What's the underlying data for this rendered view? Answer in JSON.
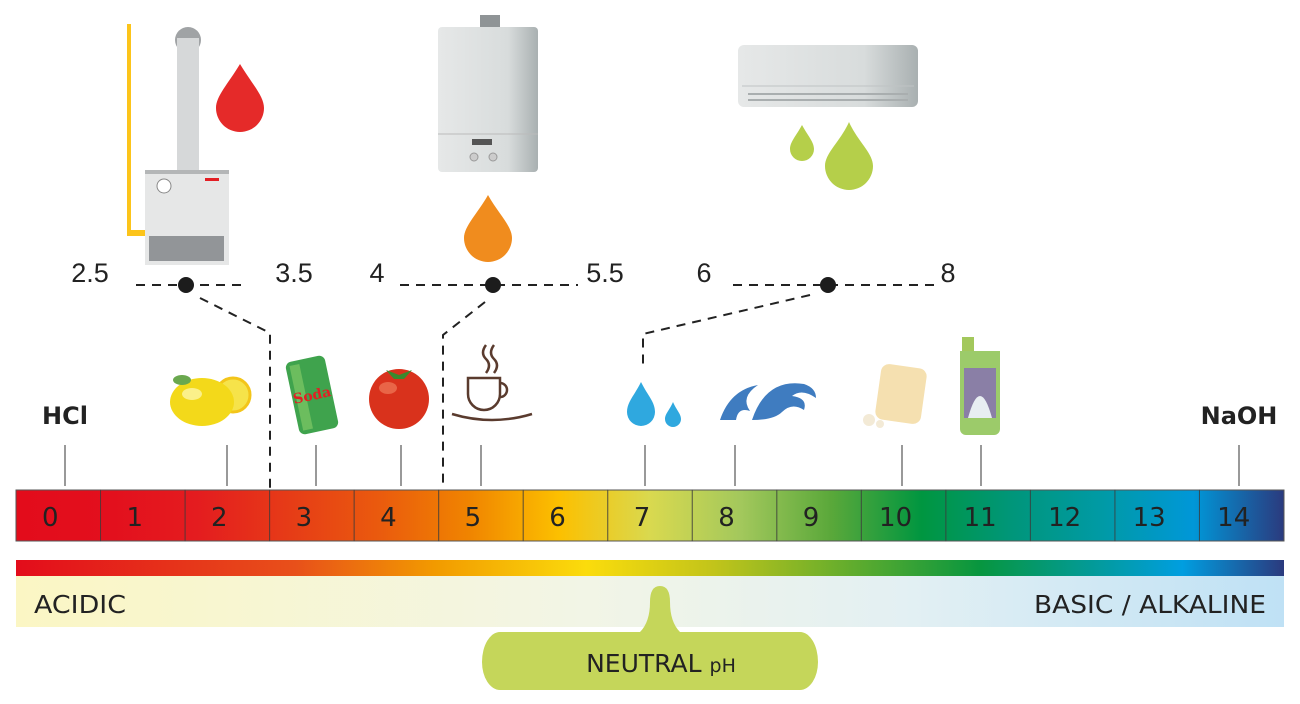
{
  "scale": {
    "values": [
      "0",
      "1",
      "2",
      "3",
      "4",
      "5",
      "6",
      "7",
      "8",
      "9",
      "10",
      "11",
      "12",
      "13",
      "14"
    ],
    "colors": [
      "#e30c1b",
      "#e30f1d",
      "#e41c1f",
      "#e63b17",
      "#ea5a0e",
      "#f08400",
      "#fcc000",
      "#d9d94f",
      "#a3c85c",
      "#5aa83a",
      "#009640",
      "#00967a",
      "#009aa6",
      "#0097d8",
      "#2b3a7e"
    ]
  },
  "endpoints": {
    "left": "HCl",
    "right": "NaOH"
  },
  "ranges": [
    {
      "low": "2.5",
      "high": "3.5",
      "drop_color": "#e52a29",
      "appliance": "boiler-floor"
    },
    {
      "low": "4",
      "high": "5.5",
      "drop_color": "#f08c1e",
      "appliance": "boiler-wall"
    },
    {
      "low": "6",
      "high": "8",
      "drop_color": "#b5cf4a",
      "appliance": "air-conditioner"
    }
  ],
  "items": [
    "lemon-icon",
    "soda-can-icon",
    "tomato-icon",
    "coffee-cup-icon",
    "water-drops-icon",
    "sea-wave-icon",
    "soap-icon",
    "bleach-bottle-icon"
  ],
  "bands": {
    "acidic": "ACIDIC",
    "basic": "BASIC / ALKALINE",
    "neutral_main": "NEUTRAL ",
    "neutral_ph": "pH"
  },
  "colors": {
    "neutral_pill": "#c5d65a",
    "acidic_band": "#fbf6c4",
    "basic_band": "#bfe1f5"
  }
}
